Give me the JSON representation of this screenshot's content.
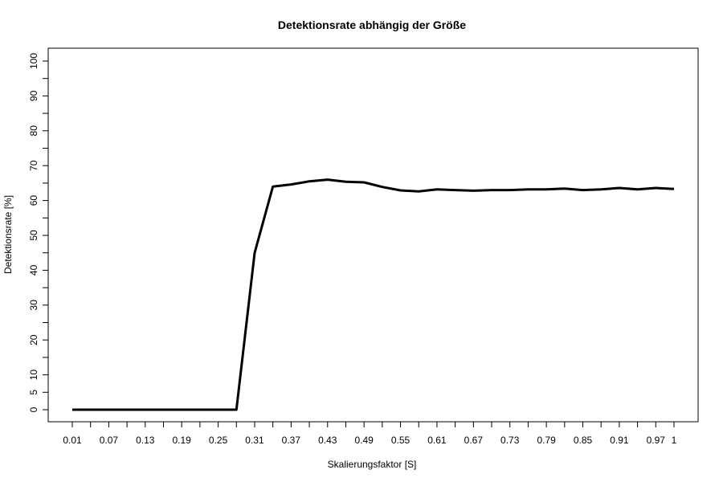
{
  "chart_data": {
    "type": "line",
    "title": "Detektionsrate abhängig der Größe",
    "xlabel": "Skalierungsfaktor [S]",
    "ylabel": "Detektionsrate [%]",
    "x_tick_labels": [
      "0.01",
      "0.07",
      "0.13",
      "0.19",
      "0.25",
      "0.31",
      "0.37",
      "0.43",
      "0.49",
      "0.55",
      "0.61",
      "0.67",
      "0.73",
      "0.79",
      "0.85",
      "0.91",
      "0.97",
      "1"
    ],
    "y_ticks": [
      0,
      5,
      10,
      20,
      30,
      40,
      50,
      60,
      70,
      80,
      90,
      100
    ],
    "xlim": [
      0.01,
      1.0
    ],
    "ylim": [
      0,
      100
    ],
    "grid": false,
    "line_color": "#000000",
    "series": [
      {
        "x": [
          0.01,
          0.04,
          0.07,
          0.1,
          0.13,
          0.16,
          0.19,
          0.22,
          0.25,
          0.28,
          0.31,
          0.34,
          0.37,
          0.4,
          0.43,
          0.46,
          0.49,
          0.52,
          0.55,
          0.58,
          0.61,
          0.64,
          0.67,
          0.7,
          0.73,
          0.76,
          0.79,
          0.82,
          0.85,
          0.88,
          0.91,
          0.94,
          0.97,
          1.0
        ],
        "y": [
          0,
          0,
          0,
          0,
          0,
          0,
          0,
          0,
          0,
          0,
          45,
          64,
          64.6,
          65.5,
          66,
          65.4,
          65.2,
          63.9,
          62.9,
          62.6,
          63.2,
          63.0,
          62.8,
          63.0,
          63.0,
          63.2,
          63.2,
          63.4,
          63.0,
          63.2,
          63.6,
          63.2,
          63.6,
          63.3
        ]
      }
    ]
  }
}
